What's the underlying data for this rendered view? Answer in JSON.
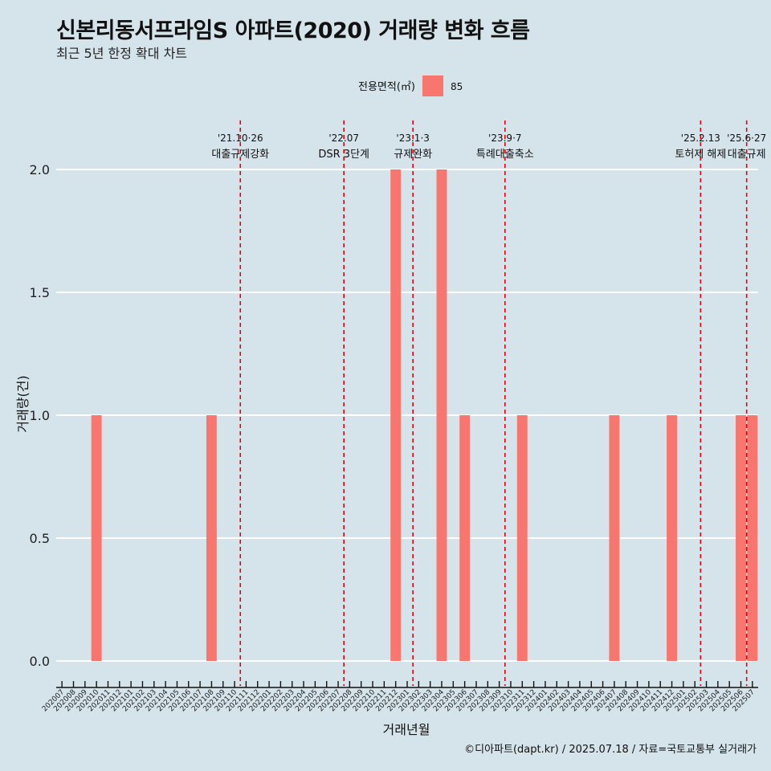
{
  "chart_data": {
    "type": "bar",
    "title": "신본리동서프라임S 아파트(2020) 거래량 변화 흐름",
    "subtitle": "최근 5년 한정 확대 차트",
    "xlabel": "거래년월",
    "ylabel": "거래량(건)",
    "ylim": [
      0,
      2.2
    ],
    "yticks": [
      "0.0",
      "0.5",
      "1.0",
      "1.5",
      "2.0"
    ],
    "ytick_values": [
      0,
      0.5,
      1.0,
      1.5,
      2.0
    ],
    "legend": {
      "title": "전용면적(㎡)",
      "items": [
        {
          "name": "85",
          "color": "#f8766d"
        }
      ],
      "position": "top"
    },
    "categories": [
      "202007",
      "202008",
      "202009",
      "202010",
      "202011",
      "202012",
      "202101",
      "202102",
      "202103",
      "202104",
      "202105",
      "202106",
      "202107",
      "202108",
      "202109",
      "202110",
      "202111",
      "202112",
      "202201",
      "202202",
      "202203",
      "202204",
      "202205",
      "202206",
      "202207",
      "202208",
      "202209",
      "202210",
      "202211",
      "202212",
      "202301",
      "202302",
      "202303",
      "202304",
      "202305",
      "202306",
      "202307",
      "202308",
      "202309",
      "202310",
      "202311",
      "202312",
      "202401",
      "202402",
      "202403",
      "202404",
      "202405",
      "202406",
      "202407",
      "202408",
      "202409",
      "202410",
      "202411",
      "202412",
      "202501",
      "202502",
      "202503",
      "202504",
      "202505",
      "202506",
      "202507"
    ],
    "series": [
      {
        "name": "85",
        "color": "#f8766d",
        "values": [
          0,
          0,
          0,
          1,
          0,
          0,
          0,
          0,
          0,
          0,
          0,
          0,
          0,
          1,
          0,
          0,
          0,
          0,
          0,
          0,
          0,
          0,
          0,
          0,
          0,
          0,
          0,
          0,
          0,
          2,
          0,
          0,
          0,
          2,
          0,
          1,
          0,
          0,
          0,
          0,
          1,
          0,
          0,
          0,
          0,
          0,
          0,
          0,
          1,
          0,
          0,
          0,
          0,
          1,
          0,
          0,
          0,
          0,
          0,
          1,
          1
        ]
      }
    ],
    "annotations": [
      {
        "position": 15.5,
        "date": "'21.10·26",
        "label": "대출규제강화"
      },
      {
        "position": 24.5,
        "date": "'22.07",
        "label": "DSR 3단계"
      },
      {
        "position": 30.5,
        "date": "'23.1·3",
        "label": "규제완화"
      },
      {
        "position": 38.5,
        "date": "'23.9·7",
        "label": "특례대출축소"
      },
      {
        "position": 55.5,
        "date": "'25.2.13",
        "label": "토허제 해제"
      },
      {
        "position": 59.5,
        "date": "'25.6·27",
        "label": "대출규제"
      }
    ],
    "grid": true,
    "caption": "©디아파트(dapt.kr) / 2025.07.18 / 자료=국토교통부 실거래가"
  }
}
